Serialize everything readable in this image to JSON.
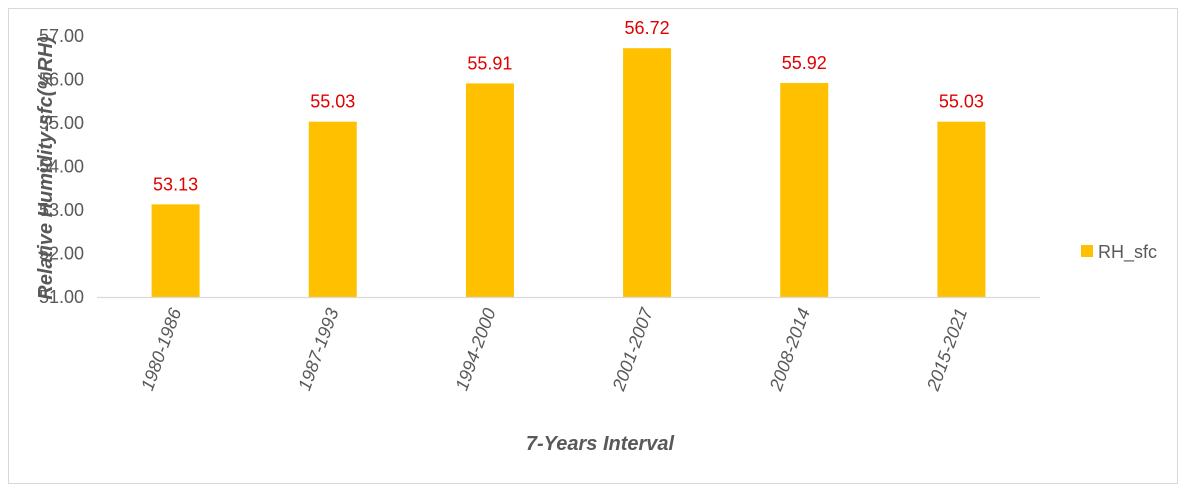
{
  "chart_data": {
    "type": "bar",
    "title": "",
    "xlabel": "7-Years Interval",
    "ylabel": "Relative Humidity-sfc(%RH)",
    "categories": [
      "1980-1986",
      "1987-1993",
      "1994-2000",
      "2001-2007",
      "2008-2014",
      "2015-2021"
    ],
    "series": [
      {
        "name": "RH_sfc",
        "color": "#FFC000",
        "values": [
          53.13,
          55.03,
          55.91,
          56.72,
          55.92,
          55.03
        ],
        "labels": [
          "53.13",
          "55.03",
          "55.91",
          "56.72",
          "55.92",
          "55.03"
        ]
      }
    ],
    "ylim": [
      51,
      57
    ],
    "yticks": [
      "51.00",
      "52.00",
      "53.00",
      "54.00",
      "55.00",
      "56.00",
      "57.00"
    ],
    "data_label_color": "#E00000",
    "grid": false,
    "legend": "right"
  }
}
